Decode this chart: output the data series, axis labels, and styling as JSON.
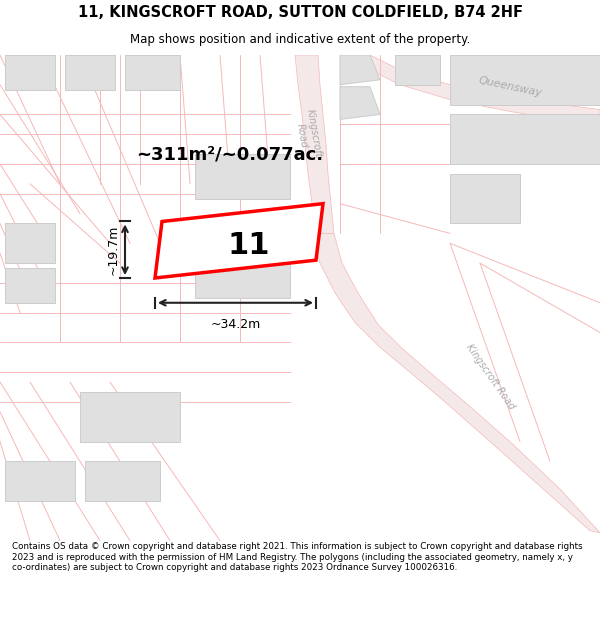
{
  "title_line1": "11, KINGSCROFT ROAD, SUTTON COLDFIELD, B74 2HF",
  "title_line2": "Map shows position and indicative extent of the property.",
  "footer_text": "Contains OS data © Crown copyright and database right 2021. This information is subject to Crown copyright and database rights 2023 and is reproduced with the permission of HM Land Registry. The polygons (including the associated geometry, namely x, y co-ordinates) are subject to Crown copyright and database rights 2023 Ordnance Survey 100026316.",
  "bg_color": "#ffffff",
  "map_bg_color": "#ffffff",
  "road_line_color": "#f5b8b8",
  "road_fill_color": "#f5e8e8",
  "building_fill_color": "#e0e0e0",
  "building_edge_color": "#cccccc",
  "property_fill_color": "#ffffff",
  "property_edge_color": "#ff0000",
  "road_label_color": "#aaaaaa",
  "dim_color": "#222222",
  "area_text": "~311m²/~0.077ac.",
  "property_label": "11",
  "width_label": "~34.2m",
  "height_label": "~19.7m"
}
